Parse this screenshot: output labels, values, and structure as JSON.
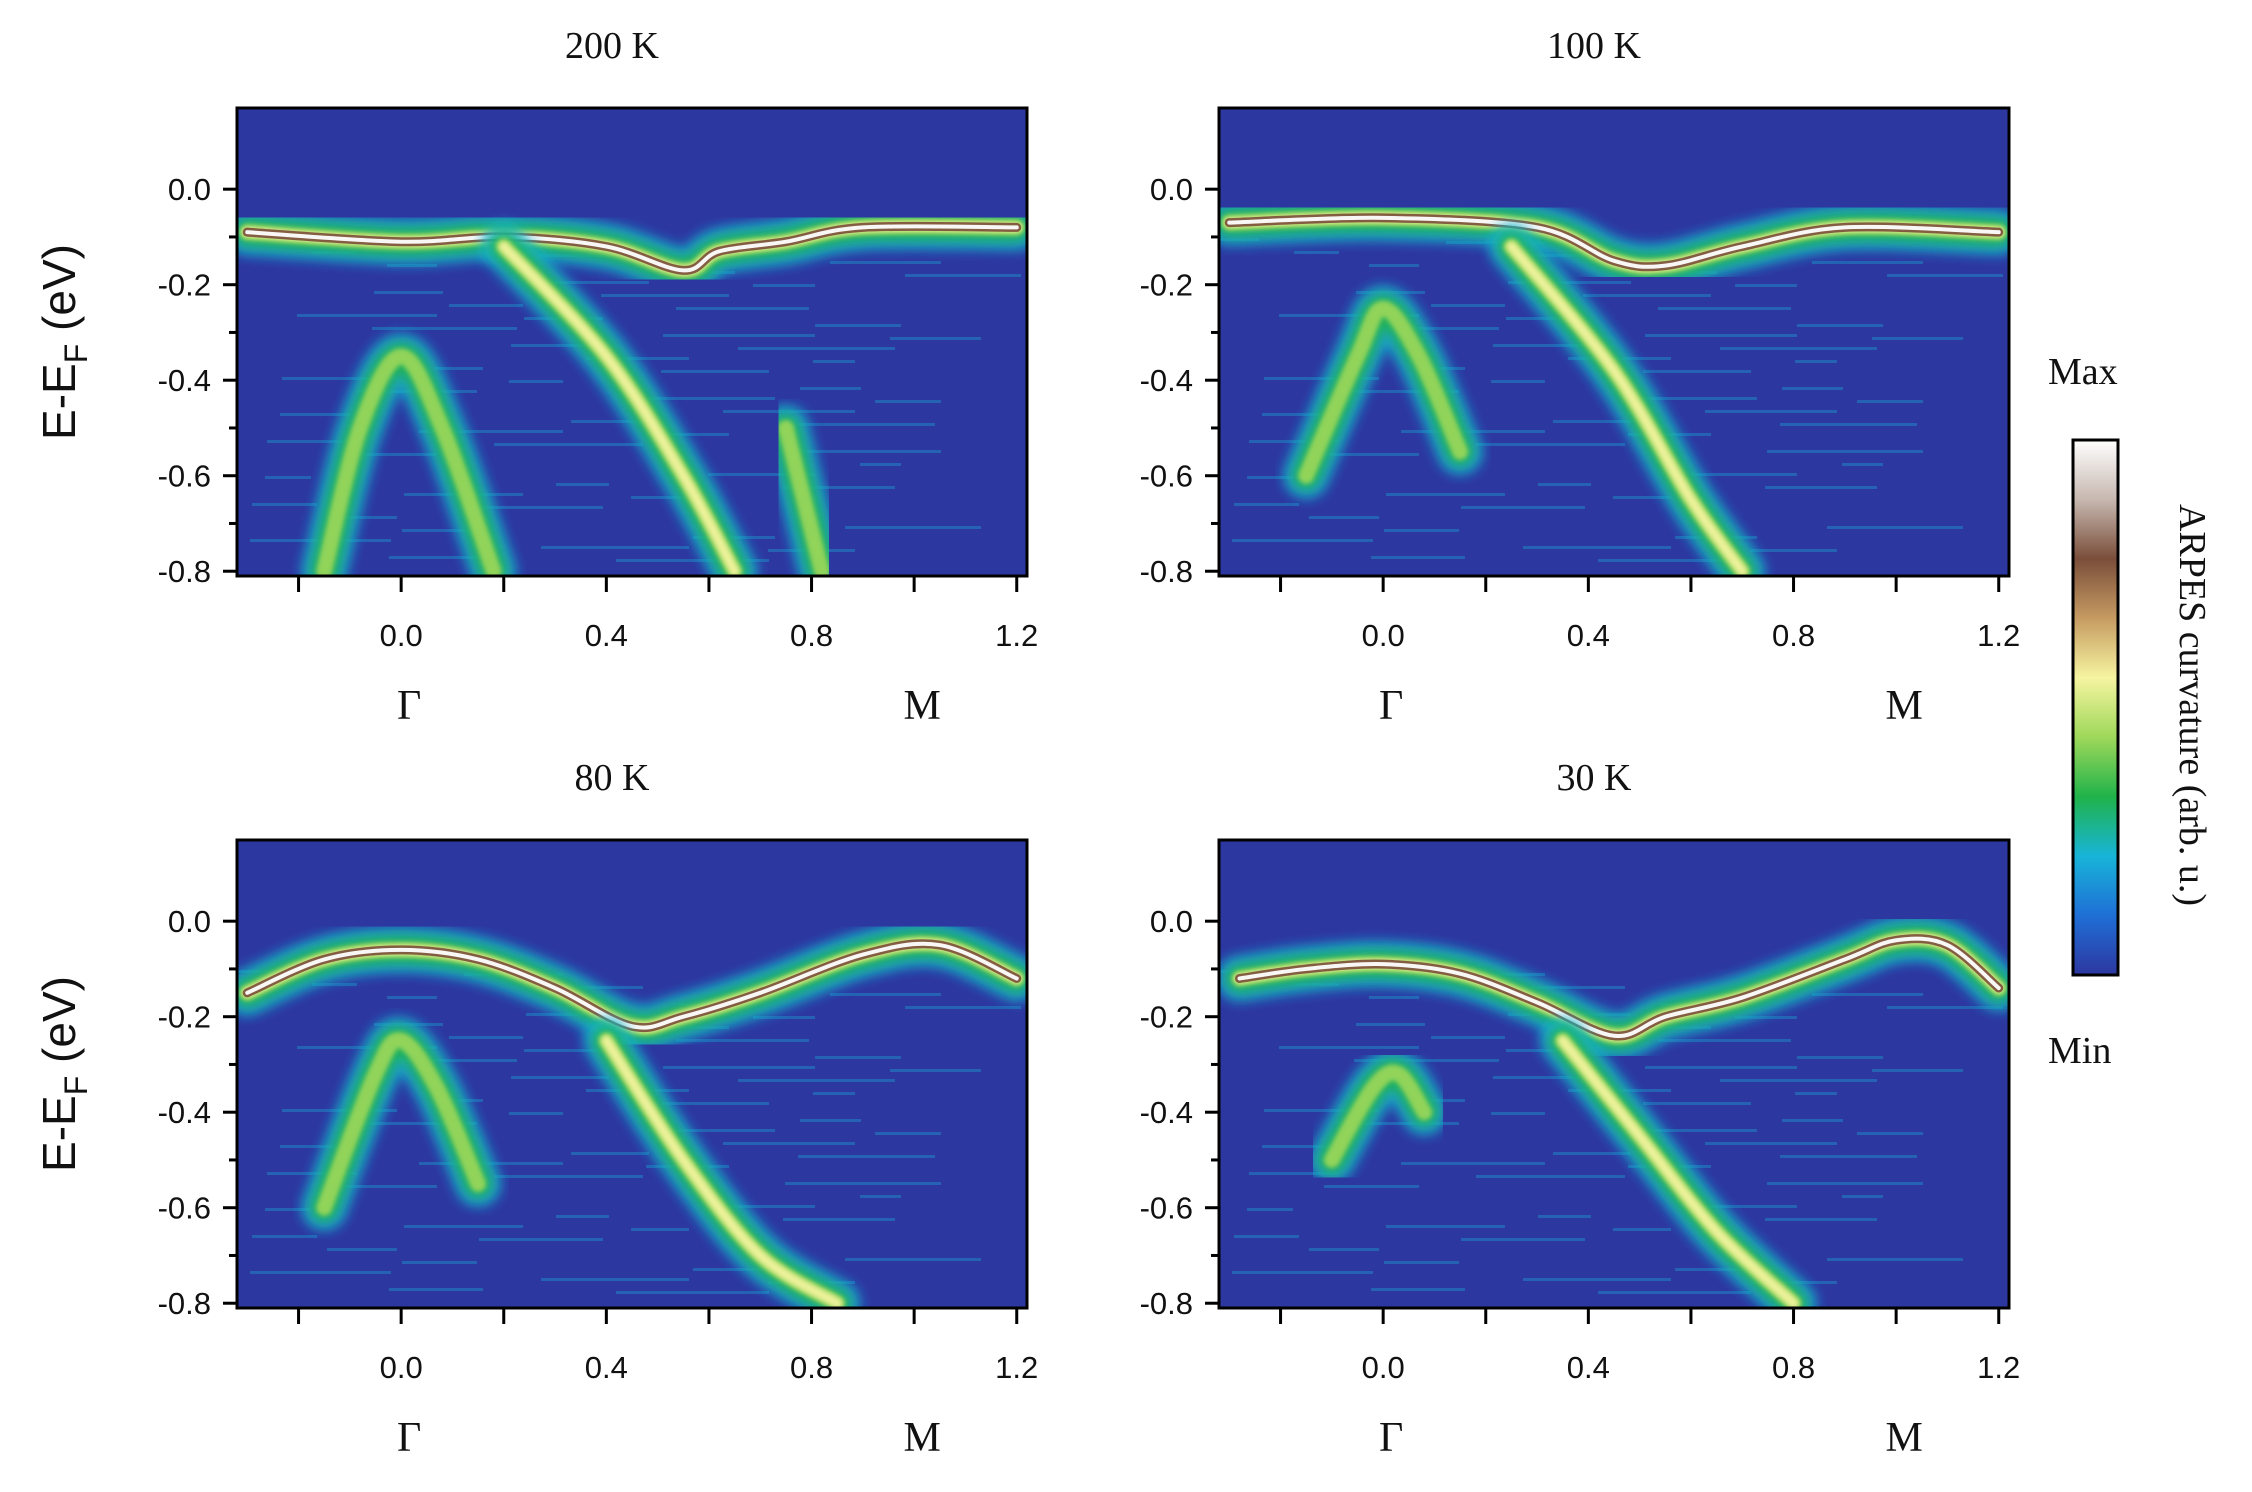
{
  "chart_data": [
    {
      "type": "heatmap",
      "title": "200 K",
      "ylabel": {
        "main": "E-E",
        "sub": "F",
        "unit": " (eV)"
      },
      "x_ticks": [
        "0.0",
        "0.4",
        "0.8",
        "1.2"
      ],
      "x_tick_values": [
        0.0,
        0.4,
        0.8,
        1.2
      ],
      "x_minor_values": [
        -0.2,
        0.2,
        0.6,
        1.0
      ],
      "y_ticks": [
        "0.0",
        "-0.2",
        "-0.4",
        "-0.6",
        "-0.8"
      ],
      "y_tick_values": [
        0.0,
        -0.2,
        -0.4,
        -0.6,
        -0.8
      ],
      "symmetry_points": [
        {
          "label": "Γ",
          "x": 0.0
        },
        {
          "label": "M",
          "x": 1.0
        }
      ],
      "xlim": [
        -0.32,
        1.22
      ],
      "ylim": [
        -0.81,
        0.17
      ],
      "bands": [
        {
          "name": "top",
          "points": [
            [
              -0.3,
              -0.09
            ],
            [
              0.0,
              -0.11
            ],
            [
              0.2,
              -0.1
            ],
            [
              0.4,
              -0.12
            ],
            [
              0.55,
              -0.17
            ],
            [
              0.62,
              -0.13
            ],
            [
              0.75,
              -0.11
            ],
            [
              0.9,
              -0.08
            ],
            [
              1.2,
              -0.08
            ]
          ],
          "intensity": 0.75
        },
        {
          "name": "inner",
          "points": [
            [
              -0.15,
              -0.8
            ],
            [
              -0.08,
              -0.5
            ],
            [
              0.0,
              -0.35
            ],
            [
              0.08,
              -0.5
            ],
            [
              0.18,
              -0.8
            ]
          ],
          "intensity": 0.3
        },
        {
          "name": "outer",
          "points": [
            [
              0.2,
              -0.12
            ],
            [
              0.4,
              -0.35
            ],
            [
              0.55,
              -0.6
            ],
            [
              0.65,
              -0.8
            ]
          ],
          "intensity": 0.45
        },
        {
          "name": "outer2",
          "points": [
            [
              0.75,
              -0.5
            ],
            [
              0.82,
              -0.8
            ]
          ],
          "intensity": 0.35
        }
      ]
    },
    {
      "type": "heatmap",
      "title": "100 K",
      "x_ticks": [
        "0.0",
        "0.4",
        "0.8",
        "1.2"
      ],
      "x_tick_values": [
        0.0,
        0.4,
        0.8,
        1.2
      ],
      "x_minor_values": [
        -0.2,
        0.2,
        0.6,
        1.0
      ],
      "y_ticks": [
        "0.0",
        "-0.2",
        "-0.4",
        "-0.6",
        "-0.8"
      ],
      "y_tick_values": [
        0.0,
        -0.2,
        -0.4,
        -0.6,
        -0.8
      ],
      "symmetry_points": [
        {
          "label": "Γ",
          "x": 0.0
        },
        {
          "label": "M",
          "x": 1.0
        }
      ],
      "xlim": [
        -0.32,
        1.22
      ],
      "ylim": [
        -0.81,
        0.17
      ],
      "bands": [
        {
          "name": "top",
          "points": [
            [
              -0.3,
              -0.07
            ],
            [
              0.0,
              -0.06
            ],
            [
              0.3,
              -0.08
            ],
            [
              0.45,
              -0.15
            ],
            [
              0.55,
              -0.16
            ],
            [
              0.7,
              -0.12
            ],
            [
              0.9,
              -0.08
            ],
            [
              1.2,
              -0.09
            ]
          ],
          "intensity": 0.8
        },
        {
          "name": "inner",
          "points": [
            [
              -0.15,
              -0.6
            ],
            [
              -0.05,
              -0.35
            ],
            [
              0.0,
              -0.25
            ],
            [
              0.07,
              -0.35
            ],
            [
              0.15,
              -0.55
            ]
          ],
          "intensity": 0.35
        },
        {
          "name": "outer",
          "points": [
            [
              0.25,
              -0.12
            ],
            [
              0.45,
              -0.38
            ],
            [
              0.6,
              -0.65
            ],
            [
              0.7,
              -0.8
            ]
          ],
          "intensity": 0.4
        }
      ]
    },
    {
      "type": "heatmap",
      "title": "80 K",
      "x_ticks": [
        "0.0",
        "0.4",
        "0.8",
        "1.2"
      ],
      "x_tick_values": [
        0.0,
        0.4,
        0.8,
        1.2
      ],
      "x_minor_values": [
        -0.2,
        0.2,
        0.6,
        1.0
      ],
      "y_ticks": [
        "0.0",
        "-0.2",
        "-0.4",
        "-0.6",
        "-0.8"
      ],
      "y_tick_values": [
        0.0,
        -0.2,
        -0.4,
        -0.6,
        -0.8
      ],
      "symmetry_points": [
        {
          "label": "Γ",
          "x": 0.0
        },
        {
          "label": "M",
          "x": 1.0
        }
      ],
      "xlim": [
        -0.32,
        1.22
      ],
      "ylim": [
        -0.81,
        0.17
      ],
      "bands": [
        {
          "name": "top",
          "points": [
            [
              -0.3,
              -0.15
            ],
            [
              -0.15,
              -0.08
            ],
            [
              0.0,
              -0.06
            ],
            [
              0.15,
              -0.08
            ],
            [
              0.3,
              -0.14
            ],
            [
              0.45,
              -0.22
            ],
            [
              0.55,
              -0.2
            ],
            [
              0.7,
              -0.15
            ],
            [
              0.9,
              -0.07
            ],
            [
              1.05,
              -0.05
            ],
            [
              1.2,
              -0.12
            ]
          ],
          "intensity": 0.9
        },
        {
          "name": "inner",
          "points": [
            [
              -0.15,
              -0.6
            ],
            [
              -0.05,
              -0.32
            ],
            [
              0.0,
              -0.25
            ],
            [
              0.07,
              -0.35
            ],
            [
              0.15,
              -0.55
            ]
          ],
          "intensity": 0.3
        },
        {
          "name": "outer",
          "points": [
            [
              0.4,
              -0.25
            ],
            [
              0.55,
              -0.5
            ],
            [
              0.7,
              -0.7
            ],
            [
              0.85,
              -0.8
            ]
          ],
          "intensity": 0.45
        }
      ]
    },
    {
      "type": "heatmap",
      "title": "30 K",
      "x_ticks": [
        "0.0",
        "0.4",
        "0.8",
        "1.2"
      ],
      "x_tick_values": [
        0.0,
        0.4,
        0.8,
        1.2
      ],
      "x_minor_values": [
        -0.2,
        0.2,
        0.6,
        1.0
      ],
      "y_ticks": [
        "0.0",
        "-0.2",
        "-0.4",
        "-0.6",
        "-0.8"
      ],
      "y_tick_values": [
        0.0,
        -0.2,
        -0.4,
        -0.6,
        -0.8
      ],
      "symmetry_points": [
        {
          "label": "Γ",
          "x": 0.0
        },
        {
          "label": "M",
          "x": 1.0
        }
      ],
      "xlim": [
        -0.32,
        1.22
      ],
      "ylim": [
        -0.81,
        0.17
      ],
      "bands": [
        {
          "name": "top",
          "points": [
            [
              -0.28,
              -0.12
            ],
            [
              -0.15,
              -0.1
            ],
            [
              0.0,
              -0.09
            ],
            [
              0.15,
              -0.11
            ],
            [
              0.3,
              -0.17
            ],
            [
              0.45,
              -0.24
            ],
            [
              0.55,
              -0.2
            ],
            [
              0.7,
              -0.16
            ],
            [
              0.9,
              -0.08
            ],
            [
              1.0,
              -0.04
            ],
            [
              1.1,
              -0.05
            ],
            [
              1.2,
              -0.14
            ]
          ],
          "intensity": 0.9
        },
        {
          "name": "inner",
          "points": [
            [
              -0.1,
              -0.5
            ],
            [
              -0.02,
              -0.35
            ],
            [
              0.03,
              -0.32
            ],
            [
              0.08,
              -0.4
            ]
          ],
          "intensity": 0.25
        },
        {
          "name": "outer",
          "points": [
            [
              0.35,
              -0.25
            ],
            [
              0.5,
              -0.45
            ],
            [
              0.65,
              -0.65
            ],
            [
              0.8,
              -0.8
            ]
          ],
          "intensity": 0.4
        }
      ]
    }
  ],
  "colorbar": {
    "max_label": "Max",
    "min_label": "Min",
    "title": "ARPES curvature (arb. u.)",
    "colors": [
      "#2d37a0",
      "#1f6fd6",
      "#18b4d8",
      "#20b34a",
      "#9ed85a",
      "#f6f4a0",
      "#c69b62",
      "#7a4e3a",
      "#c7b8b0",
      "#ffffff"
    ]
  },
  "background_color": "#2d37a0"
}
